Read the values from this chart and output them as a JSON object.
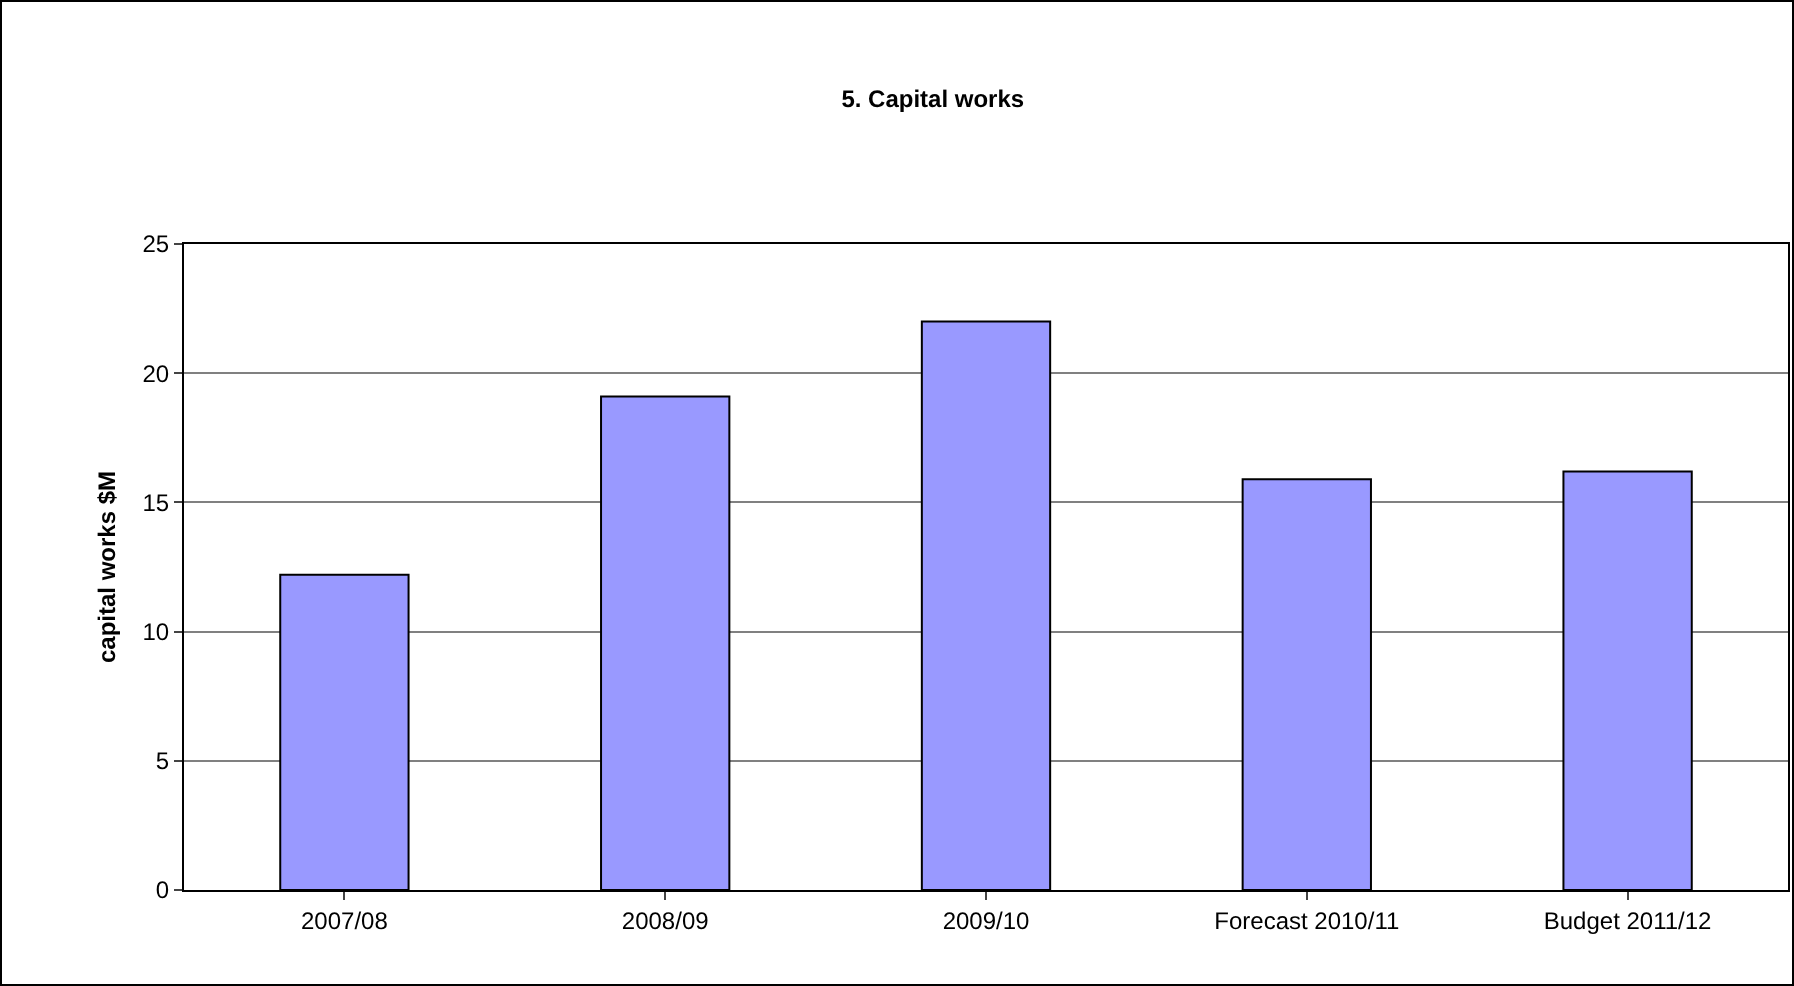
{
  "chart_data": {
    "type": "bar",
    "title": "5. Capital works",
    "ylabel": "capital works $M",
    "categories": [
      "2007/08",
      "2008/09",
      "2009/10",
      "Forecast 2010/11",
      "Budget 2011/12"
    ],
    "values": [
      12.2,
      19.1,
      22.0,
      15.9,
      16.2
    ],
    "color": "#9999ff",
    "ylim": [
      0,
      25
    ],
    "yticks": [
      0,
      5,
      10,
      15,
      20,
      25
    ],
    "grid": "y",
    "legend": false
  }
}
